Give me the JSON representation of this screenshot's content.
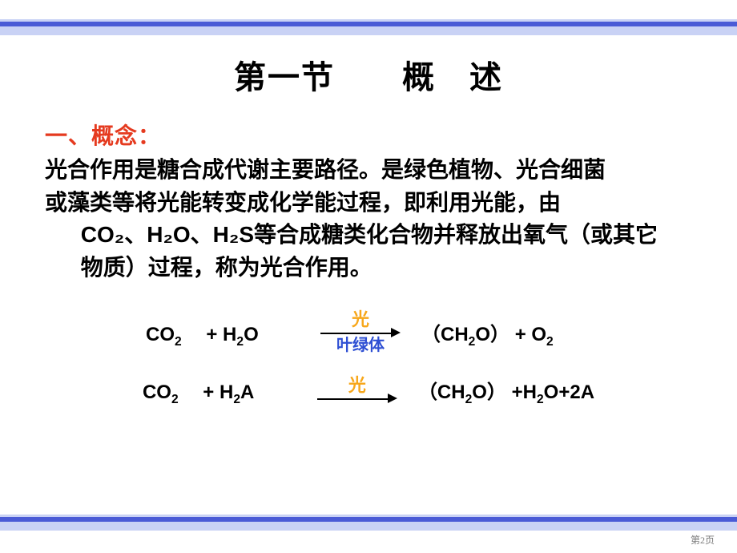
{
  "colors": {
    "section_label": "#e53a1f",
    "body_text": "#000000",
    "arrow_top": "#f7a71b",
    "arrow_bottom": "#2e4fd3",
    "band_light": "#c9d2f5",
    "band_dark": "#4a5bd6"
  },
  "title": "第一节　　概　述",
  "section_label": "一、概念：",
  "body_lines": [
    "光合作用是糖合成代谢主要路径。是绿色植物、光合细菌",
    "或藻类等将光能转变成化学能过程，即利用光能，由",
    "CO₂、H₂O、H₂S等合成糖类化合物并释放出氧气（或其它",
    "物质）过程，称为光合作用。"
  ],
  "equations": [
    {
      "left_html": "CO<sub>2</sub>　 + H<sub>2</sub>O",
      "arrow_top": "光",
      "arrow_bottom": "叶绿体",
      "right_html": "（CH<sub>2</sub>O） + O<sub>2</sub>"
    },
    {
      "left_html": "CO<sub>2</sub>　 + H<sub>2</sub>A",
      "arrow_top": "光",
      "arrow_bottom": "",
      "right_html": "（CH<sub>2</sub>O） +H<sub>2</sub>O+2A"
    }
  ],
  "page_number": "第2页"
}
